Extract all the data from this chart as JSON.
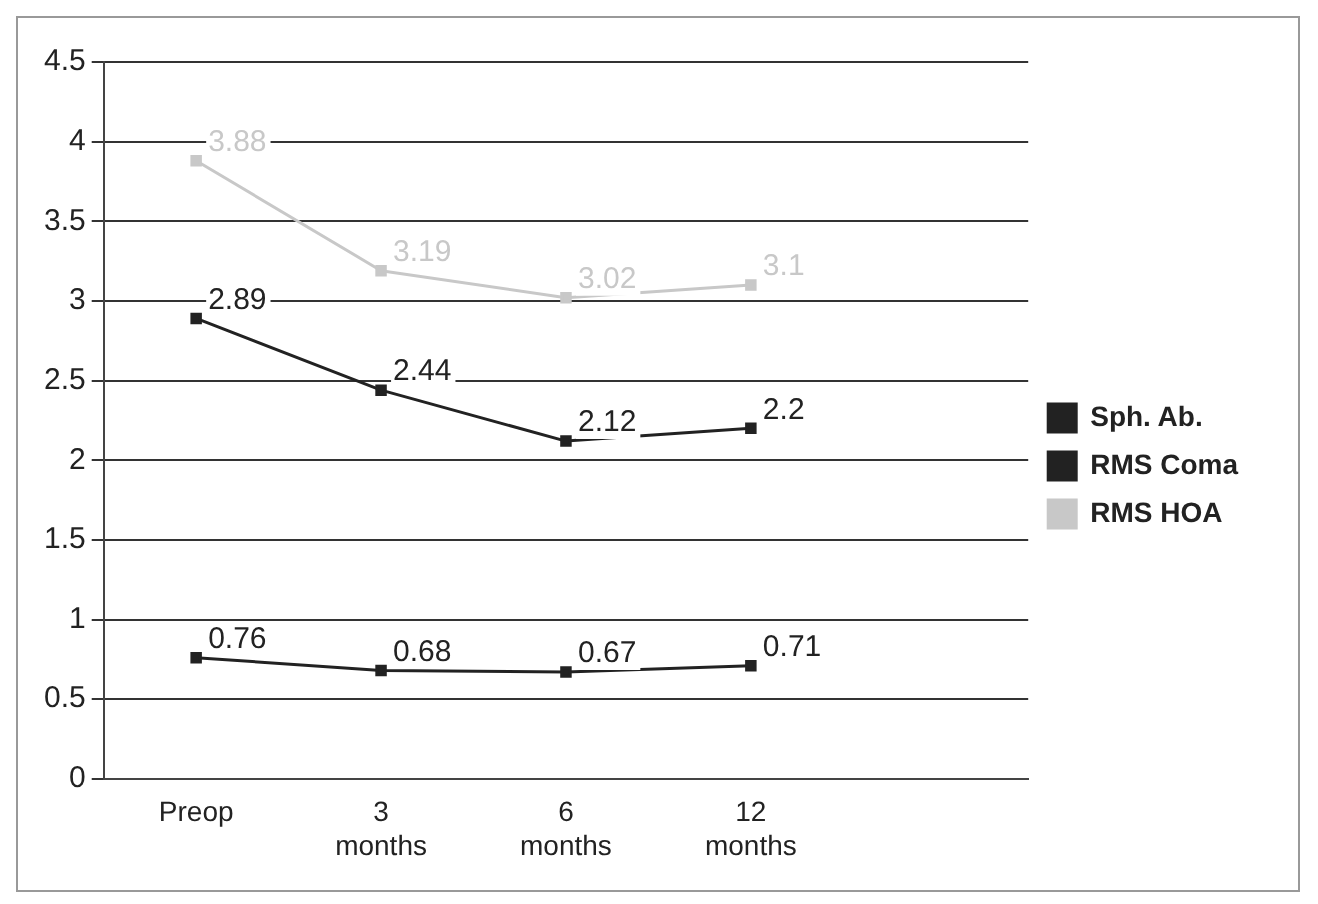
{
  "chart_data": {
    "type": "line",
    "categories": [
      "Preop",
      "3 months",
      "6 months",
      "12 months",
      null
    ],
    "series": [
      {
        "name": "Sph. Ab.",
        "color": "#222222",
        "values": [
          0.76,
          0.68,
          0.67,
          0.71,
          null
        ]
      },
      {
        "name": "RMS Coma",
        "color": "#222222",
        "values": [
          2.89,
          2.44,
          2.12,
          2.2,
          null
        ]
      },
      {
        "name": "RMS HOA",
        "color": "#c8c8c8",
        "values": [
          3.88,
          3.19,
          3.02,
          3.1,
          null
        ]
      }
    ],
    "ylim": [
      0,
      4.5
    ],
    "yticks": [
      0,
      0.5,
      1,
      1.5,
      2,
      2.5,
      3,
      3.5,
      4,
      4.5
    ],
    "grid": "y",
    "legend": "right",
    "marker": "square",
    "data_labels": true
  }
}
